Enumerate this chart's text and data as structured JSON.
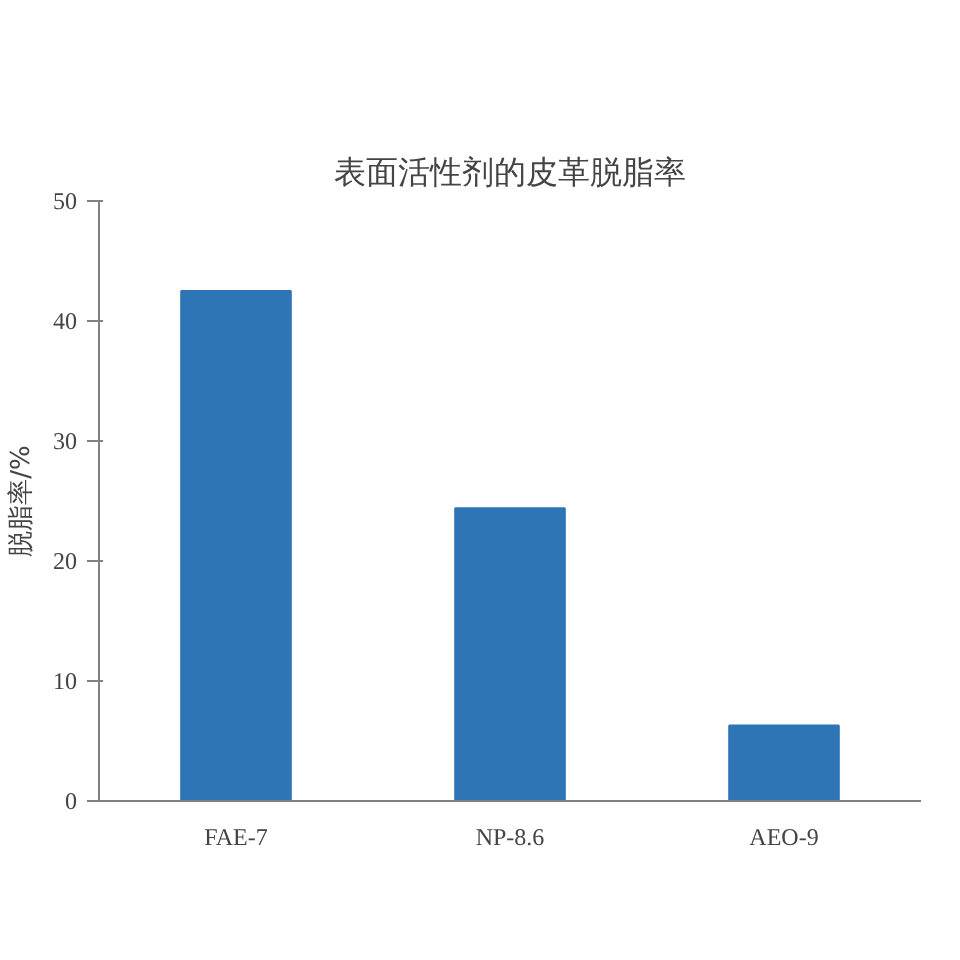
{
  "chart_data": {
    "type": "bar",
    "title": "表面活性剂的皮革脱脂率",
    "ylabel": "脱脂率/%",
    "categories": [
      "FAE-7",
      "NP-8.6",
      "AEO-9"
    ],
    "values": [
      42.5,
      24.4,
      6.3
    ],
    "color": "#2e75b6",
    "ylim": [
      0,
      50
    ],
    "yticks": [
      0,
      10,
      20,
      30,
      40,
      50
    ],
    "grid": false
  }
}
